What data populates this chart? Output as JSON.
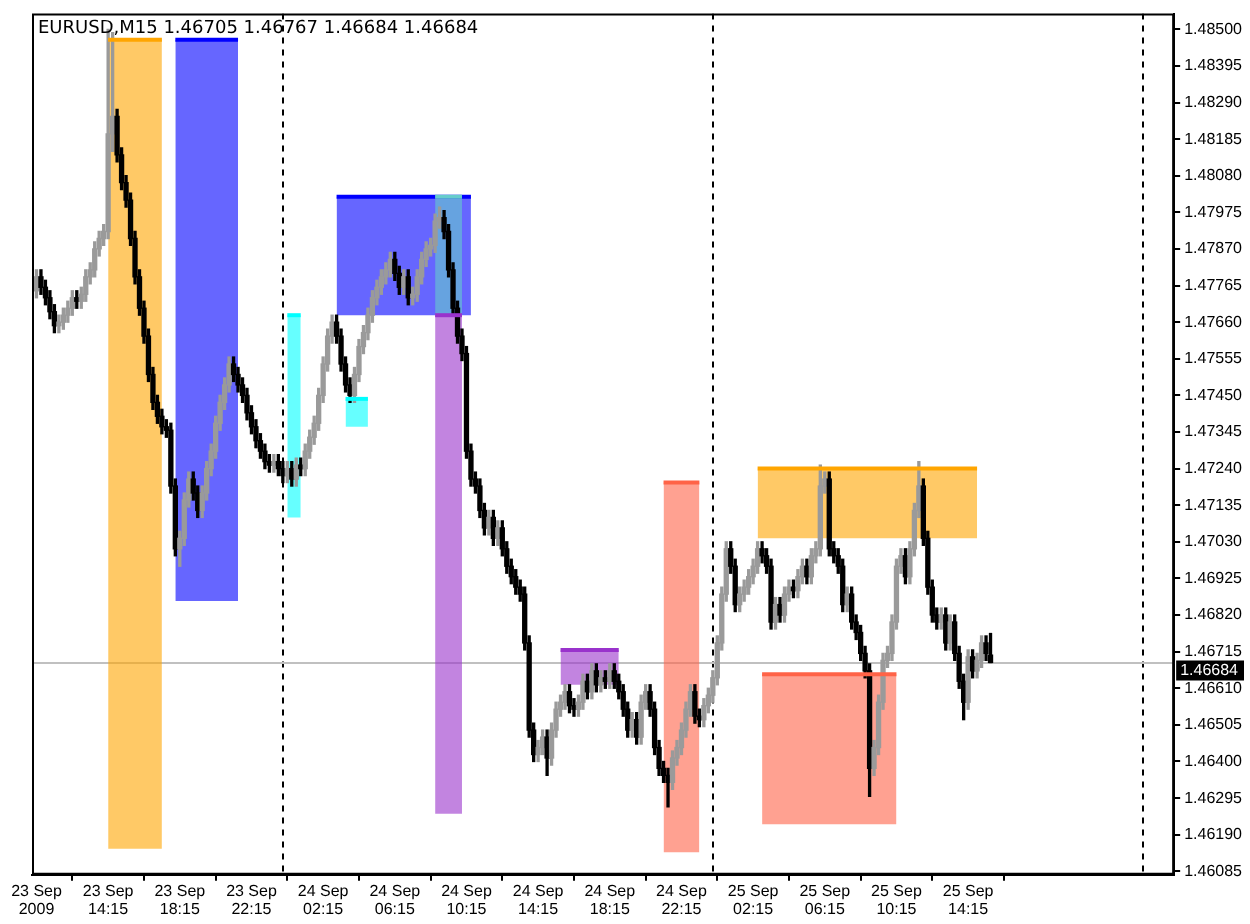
{
  "chart_data": {
    "type": "candlestick",
    "title": "EURUSD,M15 1.46705 1.46767 1.46684 1.46684",
    "x": [
      "2009-09-23T10:15",
      "2009-09-23T10:30",
      "2009-09-23T10:45",
      "2009-09-23T11:00",
      "2009-09-23T11:15",
      "2009-09-23T11:30",
      "2009-09-23T11:45",
      "2009-09-23T12:00",
      "2009-09-23T12:15",
      "2009-09-23T12:30",
      "2009-09-23T12:45",
      "2009-09-23T13:00",
      "2009-09-23T13:15",
      "2009-09-23T13:30",
      "2009-09-23T13:45",
      "2009-09-23T14:00",
      "2009-09-23T14:15",
      "2009-09-23T14:30",
      "2009-09-23T14:45",
      "2009-09-23T15:00",
      "2009-09-23T15:15",
      "2009-09-23T15:30",
      "2009-09-23T15:45",
      "2009-09-23T16:00",
      "2009-09-23T16:15",
      "2009-09-23T16:30",
      "2009-09-23T16:45",
      "2009-09-23T17:00",
      "2009-09-23T17:15",
      "2009-09-23T17:30",
      "2009-09-23T17:45",
      "2009-09-23T18:00",
      "2009-09-23T18:15",
      "2009-09-23T18:30",
      "2009-09-23T18:45",
      "2009-09-23T19:00",
      "2009-09-23T19:15",
      "2009-09-23T19:30",
      "2009-09-23T19:45",
      "2009-09-23T20:00",
      "2009-09-23T20:15",
      "2009-09-23T20:30",
      "2009-09-23T20:45",
      "2009-09-23T21:00",
      "2009-09-23T21:15",
      "2009-09-23T21:30",
      "2009-09-23T21:45",
      "2009-09-23T22:00",
      "2009-09-23T22:15",
      "2009-09-23T22:30",
      "2009-09-23T22:45",
      "2009-09-23T23:00",
      "2009-09-23T23:15",
      "2009-09-23T23:30",
      "2009-09-23T23:45",
      "2009-09-24T00:00",
      "2009-09-24T00:15",
      "2009-09-24T00:30",
      "2009-09-24T00:45",
      "2009-09-24T01:00",
      "2009-09-24T01:15",
      "2009-09-24T01:30",
      "2009-09-24T01:45",
      "2009-09-24T02:00",
      "2009-09-24T02:15",
      "2009-09-24T02:30",
      "2009-09-24T02:45",
      "2009-09-24T03:00",
      "2009-09-24T03:15",
      "2009-09-24T03:30",
      "2009-09-24T03:45",
      "2009-09-24T04:00",
      "2009-09-24T04:15",
      "2009-09-24T04:30",
      "2009-09-24T04:45",
      "2009-09-24T05:00",
      "2009-09-24T05:15",
      "2009-09-24T05:30",
      "2009-09-24T05:45",
      "2009-09-24T06:00",
      "2009-09-24T06:15",
      "2009-09-24T06:30",
      "2009-09-24T06:45",
      "2009-09-24T07:00",
      "2009-09-24T07:15",
      "2009-09-24T07:30",
      "2009-09-24T07:45",
      "2009-09-24T08:00",
      "2009-09-24T08:15",
      "2009-09-24T08:30",
      "2009-09-24T08:45",
      "2009-09-24T09:00",
      "2009-09-24T09:15",
      "2009-09-24T09:30",
      "2009-09-24T09:45",
      "2009-09-24T10:00",
      "2009-09-24T10:15",
      "2009-09-24T10:30",
      "2009-09-24T10:45",
      "2009-09-24T11:00",
      "2009-09-24T11:15",
      "2009-09-24T11:30",
      "2009-09-24T11:45",
      "2009-09-24T12:00",
      "2009-09-24T12:15",
      "2009-09-24T12:30",
      "2009-09-24T12:45",
      "2009-09-24T13:00",
      "2009-09-24T13:15",
      "2009-09-24T13:30",
      "2009-09-24T13:45",
      "2009-09-24T14:00",
      "2009-09-24T14:15",
      "2009-09-24T14:30",
      "2009-09-24T14:45",
      "2009-09-24T15:00",
      "2009-09-24T15:15",
      "2009-09-24T15:30",
      "2009-09-24T15:45",
      "2009-09-24T16:00",
      "2009-09-24T16:15",
      "2009-09-24T16:30",
      "2009-09-24T16:45",
      "2009-09-24T17:00",
      "2009-09-24T17:15",
      "2009-09-24T17:30",
      "2009-09-24T17:45",
      "2009-09-24T18:00",
      "2009-09-24T18:15",
      "2009-09-24T18:30",
      "2009-09-24T18:45",
      "2009-09-24T19:00",
      "2009-09-24T19:15",
      "2009-09-24T19:30",
      "2009-09-24T19:45",
      "2009-09-24T20:00",
      "2009-09-24T20:15",
      "2009-09-24T20:30",
      "2009-09-24T20:45",
      "2009-09-24T21:00",
      "2009-09-24T21:15",
      "2009-09-24T21:30",
      "2009-09-24T21:45",
      "2009-09-24T22:00",
      "2009-09-24T22:15",
      "2009-09-24T22:30",
      "2009-09-24T22:45",
      "2009-09-24T23:00",
      "2009-09-24T23:15",
      "2009-09-24T23:30",
      "2009-09-24T23:45",
      "2009-09-25T00:00",
      "2009-09-25T00:15",
      "2009-09-25T00:30",
      "2009-09-25T00:45",
      "2009-09-25T01:00",
      "2009-09-25T01:15",
      "2009-09-25T01:30",
      "2009-09-25T01:45",
      "2009-09-25T02:00",
      "2009-09-25T02:15",
      "2009-09-25T02:30",
      "2009-09-25T02:45",
      "2009-09-25T03:00",
      "2009-09-25T03:15",
      "2009-09-25T03:30",
      "2009-09-25T03:45",
      "2009-09-25T04:00",
      "2009-09-25T04:15",
      "2009-09-25T04:30",
      "2009-09-25T04:45",
      "2009-09-25T05:00",
      "2009-09-25T05:15",
      "2009-09-25T05:30",
      "2009-09-25T05:45",
      "2009-09-25T06:00",
      "2009-09-25T06:15",
      "2009-09-25T06:30",
      "2009-09-25T06:45",
      "2009-09-25T07:00",
      "2009-09-25T07:15",
      "2009-09-25T07:30",
      "2009-09-25T07:45",
      "2009-09-25T08:00",
      "2009-09-25T08:15",
      "2009-09-25T08:30",
      "2009-09-25T08:45",
      "2009-09-25T09:00",
      "2009-09-25T09:15",
      "2009-09-25T09:30",
      "2009-09-25T09:45",
      "2009-09-25T10:00",
      "2009-09-25T10:15",
      "2009-09-25T10:30",
      "2009-09-25T10:45",
      "2009-09-25T11:00",
      "2009-09-25T11:15",
      "2009-09-25T11:30",
      "2009-09-25T11:45",
      "2009-09-25T12:00",
      "2009-09-25T12:15",
      "2009-09-25T12:30",
      "2009-09-25T12:45",
      "2009-09-25T13:00",
      "2009-09-25T13:15",
      "2009-09-25T13:30",
      "2009-09-25T13:45",
      "2009-09-25T14:00",
      "2009-09-25T14:15",
      "2009-09-25T14:30",
      "2009-09-25T14:45",
      "2009-09-25T15:00",
      "2009-09-25T15:15",
      "2009-09-25T15:30"
    ],
    "ohlc": [
      [
        1.4775,
        1.4781,
        1.4773,
        1.4779
      ],
      [
        1.4779,
        1.4781,
        1.4774,
        1.4776
      ],
      [
        1.4776,
        1.4778,
        1.4771,
        1.4773
      ],
      [
        1.4773,
        1.4775,
        1.4767,
        1.4769
      ],
      [
        1.4769,
        1.4771,
        1.4763,
        1.4765
      ],
      [
        1.4765,
        1.4768,
        1.4763,
        1.4766
      ],
      [
        1.4766,
        1.477,
        1.4764,
        1.4768
      ],
      [
        1.4768,
        1.4772,
        1.4766,
        1.477
      ],
      [
        1.477,
        1.4775,
        1.4768,
        1.4773
      ],
      [
        1.4773,
        1.4775,
        1.477,
        1.4772
      ],
      [
        1.4772,
        1.4776,
        1.477,
        1.4774
      ],
      [
        1.4774,
        1.4781,
        1.4772,
        1.4779
      ],
      [
        1.4779,
        1.4783,
        1.4777,
        1.4781
      ],
      [
        1.4781,
        1.4789,
        1.4779,
        1.4787
      ],
      [
        1.4787,
        1.4792,
        1.4785,
        1.479
      ],
      [
        1.479,
        1.4794,
        1.4788,
        1.4792
      ],
      [
        1.4792,
        1.485,
        1.479,
        1.482
      ],
      [
        1.482,
        1.4849,
        1.4815,
        1.4825
      ],
      [
        1.4825,
        1.4827,
        1.4812,
        1.4814
      ],
      [
        1.4814,
        1.4816,
        1.4804,
        1.4806
      ],
      [
        1.4806,
        1.4808,
        1.4799,
        1.4801
      ],
      [
        1.4801,
        1.4803,
        1.4788,
        1.479
      ],
      [
        1.479,
        1.4792,
        1.4777,
        1.4779
      ],
      [
        1.4779,
        1.4781,
        1.4768,
        1.477
      ],
      [
        1.477,
        1.4772,
        1.476,
        1.4762
      ],
      [
        1.4762,
        1.4764,
        1.4749,
        1.4751
      ],
      [
        1.4751,
        1.4753,
        1.4741,
        1.4743
      ],
      [
        1.4743,
        1.4745,
        1.4737,
        1.4739
      ],
      [
        1.4739,
        1.4741,
        1.4734,
        1.4736
      ],
      [
        1.4736,
        1.4738,
        1.4733,
        1.4735
      ],
      [
        1.4735,
        1.4737,
        1.4717,
        1.4719
      ],
      [
        1.4719,
        1.4721,
        1.4699,
        1.4701
      ],
      [
        1.4701,
        1.4706,
        1.4696,
        1.4704
      ],
      [
        1.4704,
        1.4717,
        1.4702,
        1.4715
      ],
      [
        1.4715,
        1.4723,
        1.4713,
        1.4721
      ],
      [
        1.4721,
        1.4723,
        1.4715,
        1.4717
      ],
      [
        1.4717,
        1.4719,
        1.471,
        1.4712
      ],
      [
        1.4712,
        1.4719,
        1.471,
        1.4717
      ],
      [
        1.4717,
        1.4726,
        1.4715,
        1.4724
      ],
      [
        1.4724,
        1.4731,
        1.4722,
        1.4729
      ],
      [
        1.4729,
        1.4739,
        1.4727,
        1.4737
      ],
      [
        1.4737,
        1.4745,
        1.4735,
        1.4743
      ],
      [
        1.4743,
        1.475,
        1.4741,
        1.4748
      ],
      [
        1.4748,
        1.4756,
        1.4746,
        1.4754
      ],
      [
        1.4754,
        1.4756,
        1.4749,
        1.4751
      ],
      [
        1.4751,
        1.4753,
        1.4746,
        1.4748
      ],
      [
        1.4748,
        1.475,
        1.4743,
        1.4745
      ],
      [
        1.4745,
        1.4747,
        1.4738,
        1.474
      ],
      [
        1.474,
        1.4742,
        1.4734,
        1.4736
      ],
      [
        1.4736,
        1.4738,
        1.473,
        1.4732
      ],
      [
        1.4732,
        1.4734,
        1.4727,
        1.4729
      ],
      [
        1.4729,
        1.4731,
        1.4724,
        1.4726
      ],
      [
        1.4726,
        1.4728,
        1.4723,
        1.4725
      ],
      [
        1.4725,
        1.4728,
        1.4723,
        1.4726
      ],
      [
        1.4726,
        1.4728,
        1.4722,
        1.4724
      ],
      [
        1.4724,
        1.4726,
        1.472,
        1.4722
      ],
      [
        1.4722,
        1.4726,
        1.472,
        1.4724
      ],
      [
        1.4724,
        1.4726,
        1.4719,
        1.4721
      ],
      [
        1.4721,
        1.4727,
        1.4719,
        1.4725
      ],
      [
        1.4725,
        1.4727,
        1.4722,
        1.4724
      ],
      [
        1.4724,
        1.4731,
        1.4722,
        1.4729
      ],
      [
        1.4729,
        1.4735,
        1.4727,
        1.4733
      ],
      [
        1.4733,
        1.4739,
        1.4731,
        1.4737
      ],
      [
        1.4737,
        1.4747,
        1.4735,
        1.4745
      ],
      [
        1.4745,
        1.4756,
        1.4743,
        1.4754
      ],
      [
        1.4754,
        1.4764,
        1.4752,
        1.4762
      ],
      [
        1.4762,
        1.4768,
        1.476,
        1.4766
      ],
      [
        1.4766,
        1.4768,
        1.476,
        1.4762
      ],
      [
        1.4762,
        1.4764,
        1.4752,
        1.4754
      ],
      [
        1.4754,
        1.4756,
        1.4746,
        1.4748
      ],
      [
        1.4748,
        1.475,
        1.4743,
        1.4745
      ],
      [
        1.4745,
        1.4753,
        1.4743,
        1.4751
      ],
      [
        1.4751,
        1.4761,
        1.4749,
        1.4759
      ],
      [
        1.4759,
        1.4765,
        1.4757,
        1.4763
      ],
      [
        1.4763,
        1.477,
        1.4761,
        1.4768
      ],
      [
        1.4768,
        1.4775,
        1.4766,
        1.4773
      ],
      [
        1.4773,
        1.4778,
        1.4771,
        1.4776
      ],
      [
        1.4776,
        1.4781,
        1.4774,
        1.4779
      ],
      [
        1.4779,
        1.4783,
        1.4777,
        1.4781
      ],
      [
        1.4781,
        1.4786,
        1.4779,
        1.4784
      ],
      [
        1.4784,
        1.4786,
        1.4778,
        1.478
      ],
      [
        1.478,
        1.4782,
        1.4774,
        1.4776
      ],
      [
        1.4776,
        1.4781,
        1.4774,
        1.4779
      ],
      [
        1.4779,
        1.4781,
        1.4771,
        1.4773
      ],
      [
        1.4773,
        1.4776,
        1.4771,
        1.4774
      ],
      [
        1.4774,
        1.4781,
        1.4772,
        1.4779
      ],
      [
        1.4779,
        1.4786,
        1.4777,
        1.4784
      ],
      [
        1.4784,
        1.4789,
        1.4782,
        1.4787
      ],
      [
        1.4787,
        1.479,
        1.4785,
        1.4788
      ],
      [
        1.4788,
        1.4797,
        1.4786,
        1.4795
      ],
      [
        1.4795,
        1.4799,
        1.4793,
        1.4796
      ],
      [
        1.4796,
        1.4798,
        1.479,
        1.4792
      ],
      [
        1.4792,
        1.4794,
        1.4779,
        1.4781
      ],
      [
        1.4781,
        1.4783,
        1.4768,
        1.477
      ],
      [
        1.477,
        1.4772,
        1.476,
        1.4762
      ],
      [
        1.4762,
        1.4764,
        1.4755,
        1.4757
      ],
      [
        1.4757,
        1.4759,
        1.4727,
        1.4729
      ],
      [
        1.4729,
        1.4731,
        1.4719,
        1.4721
      ],
      [
        1.4721,
        1.4723,
        1.4717,
        1.4719
      ],
      [
        1.4719,
        1.4721,
        1.471,
        1.4712
      ],
      [
        1.4712,
        1.4714,
        1.4705,
        1.4707
      ],
      [
        1.4707,
        1.4712,
        1.4705,
        1.471
      ],
      [
        1.471,
        1.4712,
        1.4702,
        1.4704
      ],
      [
        1.4704,
        1.4709,
        1.4702,
        1.4707
      ],
      [
        1.4707,
        1.4709,
        1.4699,
        1.4701
      ],
      [
        1.4701,
        1.4703,
        1.4694,
        1.4696
      ],
      [
        1.4696,
        1.4698,
        1.4691,
        1.4693
      ],
      [
        1.4693,
        1.4695,
        1.4688,
        1.469
      ],
      [
        1.469,
        1.4692,
        1.4686,
        1.4688
      ],
      [
        1.4688,
        1.469,
        1.4672,
        1.4674
      ],
      [
        1.4674,
        1.4676,
        1.4647,
        1.4649
      ],
      [
        1.4649,
        1.4651,
        1.464,
        1.4642
      ],
      [
        1.4642,
        1.4646,
        1.464,
        1.4644
      ],
      [
        1.4644,
        1.4649,
        1.4642,
        1.4647
      ],
      [
        1.4647,
        1.4649,
        1.4636,
        1.4641
      ],
      [
        1.4641,
        1.4651,
        1.4639,
        1.4649
      ],
      [
        1.4649,
        1.4657,
        1.4647,
        1.4655
      ],
      [
        1.4655,
        1.4659,
        1.4653,
        1.4657
      ],
      [
        1.4657,
        1.4662,
        1.4655,
        1.466
      ],
      [
        1.466,
        1.4662,
        1.4654,
        1.4656
      ],
      [
        1.4656,
        1.4658,
        1.4653,
        1.4655
      ],
      [
        1.4655,
        1.4659,
        1.4653,
        1.4657
      ],
      [
        1.4657,
        1.4665,
        1.4655,
        1.4663
      ],
      [
        1.4663,
        1.4665,
        1.4658,
        1.466
      ],
      [
        1.466,
        1.4668,
        1.4658,
        1.4666
      ],
      [
        1.4666,
        1.4668,
        1.466,
        1.4662
      ],
      [
        1.4662,
        1.4666,
        1.466,
        1.4664
      ],
      [
        1.4664,
        1.4666,
        1.4661,
        1.4663
      ],
      [
        1.4663,
        1.4668,
        1.4661,
        1.4666
      ],
      [
        1.4666,
        1.4668,
        1.4661,
        1.4663
      ],
      [
        1.4663,
        1.4665,
        1.4658,
        1.466
      ],
      [
        1.466,
        1.4662,
        1.4653,
        1.4655
      ],
      [
        1.4655,
        1.4657,
        1.4647,
        1.4649
      ],
      [
        1.4649,
        1.4654,
        1.4647,
        1.4652
      ],
      [
        1.4652,
        1.4654,
        1.4645,
        1.4647
      ],
      [
        1.4647,
        1.4659,
        1.4645,
        1.4657
      ],
      [
        1.4657,
        1.4662,
        1.4655,
        1.466
      ],
      [
        1.466,
        1.4662,
        1.4653,
        1.4655
      ],
      [
        1.4655,
        1.4657,
        1.4642,
        1.4644
      ],
      [
        1.4644,
        1.4646,
        1.4636,
        1.4638
      ],
      [
        1.4638,
        1.464,
        1.4634,
        1.4636
      ],
      [
        1.4636,
        1.4638,
        1.4627,
        1.4634
      ],
      [
        1.4634,
        1.4643,
        1.4632,
        1.4641
      ],
      [
        1.4641,
        1.4646,
        1.4639,
        1.4644
      ],
      [
        1.4644,
        1.4651,
        1.4642,
        1.4649
      ],
      [
        1.4649,
        1.4657,
        1.4647,
        1.4655
      ],
      [
        1.4655,
        1.4662,
        1.4653,
        1.466
      ],
      [
        1.466,
        1.4662,
        1.4651,
        1.4653
      ],
      [
        1.4653,
        1.4655,
        1.465,
        1.4652
      ],
      [
        1.4652,
        1.4658,
        1.465,
        1.4656
      ],
      [
        1.4656,
        1.4661,
        1.4654,
        1.4659
      ],
      [
        1.4659,
        1.4666,
        1.4657,
        1.4664
      ],
      [
        1.4664,
        1.4676,
        1.4662,
        1.4674
      ],
      [
        1.4674,
        1.469,
        1.4672,
        1.4688
      ],
      [
        1.4688,
        1.4703,
        1.4686,
        1.4701
      ],
      [
        1.4701,
        1.4703,
        1.4694,
        1.4696
      ],
      [
        1.4696,
        1.4698,
        1.4683,
        1.4685
      ],
      [
        1.4685,
        1.469,
        1.4683,
        1.4688
      ],
      [
        1.4688,
        1.4692,
        1.4686,
        1.469
      ],
      [
        1.469,
        1.4695,
        1.4688,
        1.4693
      ],
      [
        1.4693,
        1.4698,
        1.4691,
        1.4696
      ],
      [
        1.4696,
        1.4703,
        1.4694,
        1.4701
      ],
      [
        1.4701,
        1.4703,
        1.4697,
        1.4699
      ],
      [
        1.4699,
        1.4701,
        1.4694,
        1.4696
      ],
      [
        1.4696,
        1.4698,
        1.4678,
        1.468
      ],
      [
        1.468,
        1.4687,
        1.4678,
        1.4685
      ],
      [
        1.4685,
        1.4687,
        1.468,
        1.4682
      ],
      [
        1.4682,
        1.469,
        1.468,
        1.4688
      ],
      [
        1.4688,
        1.4692,
        1.4686,
        1.469
      ],
      [
        1.469,
        1.4692,
        1.4687,
        1.4689
      ],
      [
        1.4689,
        1.4695,
        1.4687,
        1.4693
      ],
      [
        1.4693,
        1.4698,
        1.4691,
        1.4696
      ],
      [
        1.4696,
        1.4698,
        1.4691,
        1.4693
      ],
      [
        1.4693,
        1.4701,
        1.4691,
        1.4699
      ],
      [
        1.4699,
        1.4703,
        1.4697,
        1.4701
      ],
      [
        1.4701,
        1.4725,
        1.4699,
        1.4719
      ],
      [
        1.4719,
        1.4723,
        1.4717,
        1.4721
      ],
      [
        1.4721,
        1.4723,
        1.4699,
        1.4701
      ],
      [
        1.4701,
        1.4703,
        1.4697,
        1.4699
      ],
      [
        1.4699,
        1.4701,
        1.4694,
        1.4696
      ],
      [
        1.4696,
        1.4698,
        1.4683,
        1.4685
      ],
      [
        1.4685,
        1.469,
        1.4683,
        1.4688
      ],
      [
        1.4688,
        1.469,
        1.4678,
        1.468
      ],
      [
        1.468,
        1.4682,
        1.4675,
        1.4677
      ],
      [
        1.4677,
        1.4679,
        1.4669,
        1.4671
      ],
      [
        1.4671,
        1.4673,
        1.4664,
        1.4666
      ],
      [
        1.4666,
        1.4668,
        1.463,
        1.4638
      ],
      [
        1.4638,
        1.4646,
        1.4636,
        1.4644
      ],
      [
        1.4644,
        1.4659,
        1.4642,
        1.4657
      ],
      [
        1.4657,
        1.4671,
        1.4655,
        1.4669
      ],
      [
        1.4669,
        1.4673,
        1.4667,
        1.4671
      ],
      [
        1.4671,
        1.4682,
        1.4669,
        1.468
      ],
      [
        1.468,
        1.4698,
        1.4678,
        1.4696
      ],
      [
        1.4696,
        1.4701,
        1.4694,
        1.4699
      ],
      [
        1.4699,
        1.4701,
        1.4691,
        1.4693
      ],
      [
        1.4693,
        1.4703,
        1.4691,
        1.4701
      ],
      [
        1.4701,
        1.4714,
        1.4699,
        1.4712
      ],
      [
        1.4712,
        1.4726,
        1.471,
        1.4719
      ],
      [
        1.4719,
        1.4721,
        1.4702,
        1.4704
      ],
      [
        1.4704,
        1.4706,
        1.4688,
        1.469
      ],
      [
        1.469,
        1.4692,
        1.468,
        1.4682
      ],
      [
        1.4682,
        1.4684,
        1.4678,
        1.468
      ],
      [
        1.468,
        1.4684,
        1.4678,
        1.4682
      ],
      [
        1.4682,
        1.4684,
        1.4672,
        1.4674
      ],
      [
        1.4674,
        1.4682,
        1.4672,
        1.468
      ],
      [
        1.468,
        1.4682,
        1.4669,
        1.4671
      ],
      [
        1.4671,
        1.4673,
        1.4661,
        1.4663
      ],
      [
        1.4663,
        1.4665,
        1.4652,
        1.4657
      ],
      [
        1.4657,
        1.4672,
        1.4655,
        1.467
      ],
      [
        1.467,
        1.4672,
        1.4664,
        1.4666
      ],
      [
        1.4666,
        1.4671,
        1.4664,
        1.4669
      ],
      [
        1.4669,
        1.4676,
        1.4667,
        1.4674
      ],
      [
        1.4674,
        1.4676,
        1.4669,
        1.4671
      ],
      [
        1.46705,
        1.46767,
        1.46684,
        1.46684
      ]
    ],
    "xlim": [
      "2009-09-23T10:00",
      "2009-09-26T01:45"
    ],
    "xticks": [
      {
        "value": "2009-09-23T10:15",
        "label": "23 Sep 2009"
      },
      {
        "value": "2009-09-23T14:15",
        "label": "23 Sep 14:15"
      },
      {
        "value": "2009-09-23T18:15",
        "label": "23 Sep 18:15"
      },
      {
        "value": "2009-09-23T22:15",
        "label": "23 Sep 22:15"
      },
      {
        "value": "2009-09-24T02:15",
        "label": "24 Sep 02:15"
      },
      {
        "value": "2009-09-24T06:15",
        "label": "24 Sep 06:15"
      },
      {
        "value": "2009-09-24T10:15",
        "label": "24 Sep 10:15"
      },
      {
        "value": "2009-09-24T14:15",
        "label": "24 Sep 14:15"
      },
      {
        "value": "2009-09-24T18:15",
        "label": "24 Sep 18:15"
      },
      {
        "value": "2009-09-24T22:15",
        "label": "24 Sep 22:15"
      },
      {
        "value": "2009-09-25T02:15",
        "label": "25 Sep 02:15"
      },
      {
        "value": "2009-09-25T06:15",
        "label": "25 Sep 06:15"
      },
      {
        "value": "2009-09-25T10:15",
        "label": "25 Sep 10:15"
      },
      {
        "value": "2009-09-25T14:15",
        "label": "25 Sep 14:15"
      }
    ],
    "ylim": [
      1.46075,
      1.48545
    ],
    "yticks": [
      {
        "value": 1.485,
        "label": "1.48500"
      },
      1.48395,
      {
        "value": 1.4829,
        "label": "1.48290"
      },
      1.48185,
      {
        "value": 1.4808,
        "label": "1.48080"
      },
      1.47975,
      {
        "value": 1.4787,
        "label": "1.47870"
      },
      1.47765,
      {
        "value": 1.4766,
        "label": "1.47660"
      },
      1.47555,
      {
        "value": 1.4745,
        "label": "1.47450"
      },
      1.47345,
      {
        "value": 1.4724,
        "label": "1.47240"
      },
      1.47135,
      {
        "value": 1.4703,
        "label": "1.47030"
      },
      1.46925,
      {
        "value": 1.4682,
        "label": "1.46820"
      },
      1.46715,
      {
        "value": 1.4661,
        "label": "1.46610"
      },
      1.46505,
      {
        "value": 1.464,
        "label": "1.46400"
      },
      1.46295,
      {
        "value": 1.4619,
        "label": "1.46190"
      },
      1.46085
    ],
    "series": [
      {
        "type": "line",
        "x": [
          "2009-09-23T14:15",
          "2009-09-23T17:15"
        ],
        "values": [
          1.4847,
          1.4847
        ],
        "lower": [
          1.4615,
          1.4615
        ],
        "upper": [
          1.4847,
          1.4847
        ],
        "color": "#ffa500"
      },
      {
        "type": "line",
        "x": [
          "2009-09-23T18:00",
          "2009-09-23T21:30"
        ],
        "values": [
          1.4847,
          1.4847
        ],
        "lower": [
          1.4686,
          1.4686
        ],
        "upper": [
          1.4847,
          1.4847
        ],
        "color": "#0000ff"
      },
      {
        "type": "line",
        "x": [
          "2009-09-24T00:15",
          "2009-09-24T01:00"
        ],
        "values": [
          1.4768,
          1.4768
        ],
        "lower": [
          1.471,
          1.471
        ],
        "upper": [
          1.4768,
          1.4768
        ],
        "color": "#00ffff"
      },
      {
        "type": "line",
        "x": [
          "2009-09-24T03:30",
          "2009-09-24T04:45"
        ],
        "values": [
          1.4744,
          1.4744
        ],
        "lower": [
          1.4736,
          1.4736
        ],
        "upper": [
          1.4744,
          1.4744
        ],
        "color": "#00ffff"
      },
      {
        "type": "line",
        "x": [
          "2009-09-24T03:00",
          "2009-09-24T10:30"
        ],
        "values": [
          1.4802,
          1.4802
        ],
        "lower": [
          1.4768,
          1.4768
        ],
        "upper": [
          1.4802,
          1.4802
        ],
        "color": "#0000ff"
      },
      {
        "type": "line",
        "x": [
          "2009-09-24T08:30",
          "2009-09-24T10:00"
        ],
        "values": [
          1.4802,
          1.4802
        ],
        "lower": [
          1.4768,
          1.4768
        ],
        "upper": [
          1.4802,
          1.4802
        ],
        "color": "#66cccc"
      },
      {
        "type": "line",
        "x": [
          "2009-09-24T08:30",
          "2009-09-24T10:00"
        ],
        "values": [
          1.4768,
          1.4768
        ],
        "lower": [
          1.4625,
          1.4625
        ],
        "upper": [
          1.4768,
          1.4768
        ],
        "color": "#9932cc"
      },
      {
        "type": "line",
        "x": [
          "2009-09-24T15:30",
          "2009-09-24T18:45"
        ],
        "values": [
          1.4672,
          1.4672
        ],
        "lower": [
          1.4662,
          1.4662
        ],
        "upper": [
          1.4672,
          1.4672
        ],
        "color": "#9932cc"
      },
      {
        "type": "line",
        "x": [
          "2009-09-24T21:15",
          "2009-09-24T23:15"
        ],
        "values": [
          1.472,
          1.472
        ],
        "lower": [
          1.4614,
          1.4614
        ],
        "upper": [
          1.472,
          1.472
        ],
        "color": "#ff6347"
      },
      {
        "type": "line",
        "x": [
          "2009-09-25T02:30",
          "2009-09-25T14:45"
        ],
        "values": [
          1.4724,
          1.4724
        ],
        "lower": [
          1.4704,
          1.4704
        ],
        "upper": [
          1.4724,
          1.4724
        ],
        "color": "#ffa500"
      },
      {
        "type": "line",
        "x": [
          "2009-09-25T02:45",
          "2009-09-25T10:15"
        ],
        "values": [
          1.4665,
          1.4665
        ],
        "lower": [
          1.4622,
          1.4622
        ],
        "upper": [
          1.4665,
          1.4665
        ],
        "color": "#ff6347"
      }
    ],
    "ref_lines": [
      {
        "axis": "x",
        "value": "2009-09-24T00:00",
        "line_style": "dashed",
        "color": "#000000"
      },
      {
        "axis": "x",
        "value": "2009-09-25T00:00",
        "line_style": "dashed",
        "color": "#000000"
      },
      {
        "axis": "x",
        "value": "2009-09-26T00:00",
        "line_style": "dashed",
        "color": "#000000"
      },
      {
        "axis": "y",
        "value": 1.46684,
        "label": "1.46684",
        "line_style": "solid",
        "color": "#c0c0c0"
      }
    ],
    "legend": false
  }
}
